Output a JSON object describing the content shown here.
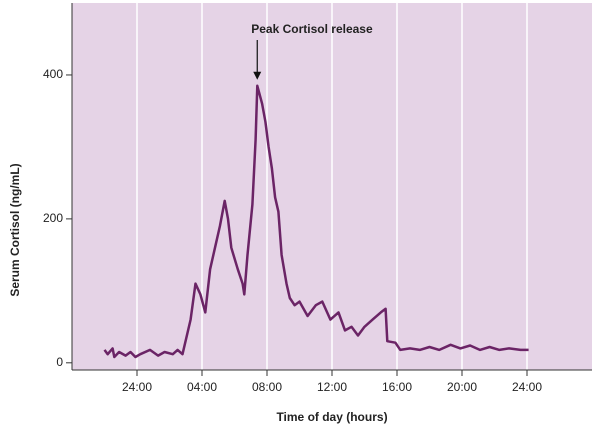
{
  "chart_data": {
    "type": "line",
    "annotation": "Peak Cortisol release",
    "y_label": "Serum Cortisol (ng/mL)",
    "x_label": "Time of day (hours)",
    "color": "#6b2466",
    "background": "#e5d3e6",
    "grid": true,
    "xlim": [
      20,
      52
    ],
    "ylim": [
      -10,
      500
    ],
    "xticks": [
      {
        "value": 24,
        "label": "24:00"
      },
      {
        "value": 28,
        "label": "04:00"
      },
      {
        "value": 32,
        "label": "08:00"
      },
      {
        "value": 36,
        "label": "12:00"
      },
      {
        "value": 40,
        "label": "16:00"
      },
      {
        "value": 44,
        "label": "20:00"
      },
      {
        "value": 48,
        "label": "24:00"
      }
    ],
    "yticks": [
      0,
      200,
      400
    ],
    "x": [
      22.0,
      22.2,
      22.5,
      22.6,
      22.9,
      23.3,
      23.6,
      23.9,
      24.2,
      24.8,
      25.3,
      25.7,
      26.2,
      26.5,
      26.8,
      27.3,
      27.6,
      27.9,
      28.2,
      28.5,
      28.8,
      29.1,
      29.4,
      29.6,
      29.8,
      30.2,
      30.5,
      30.6,
      30.8,
      31.1,
      31.3,
      31.4,
      31.7,
      31.9,
      32.1,
      32.3,
      32.5,
      32.7,
      32.9,
      33.2,
      33.4,
      33.7,
      34.0,
      34.5,
      35.0,
      35.4,
      35.9,
      36.4,
      36.8,
      37.2,
      37.6,
      38.0,
      38.5,
      39.0,
      39.3,
      39.4,
      39.9,
      40.2,
      40.8,
      41.4,
      42.0,
      42.6,
      43.3,
      43.9,
      44.5,
      45.1,
      45.7,
      46.3,
      46.9,
      47.6,
      48.1
    ],
    "values": [
      18,
      12,
      20,
      8,
      15,
      10,
      15,
      8,
      12,
      18,
      10,
      15,
      12,
      18,
      12,
      60,
      110,
      95,
      70,
      130,
      160,
      190,
      225,
      200,
      160,
      130,
      110,
      95,
      150,
      220,
      310,
      385,
      360,
      335,
      300,
      270,
      230,
      210,
      150,
      110,
      90,
      80,
      85,
      65,
      80,
      85,
      60,
      70,
      45,
      50,
      38,
      50,
      60,
      70,
      75,
      30,
      28,
      18,
      20,
      18,
      22,
      18,
      25,
      20,
      24,
      18,
      22,
      18,
      20,
      18,
      18
    ]
  }
}
